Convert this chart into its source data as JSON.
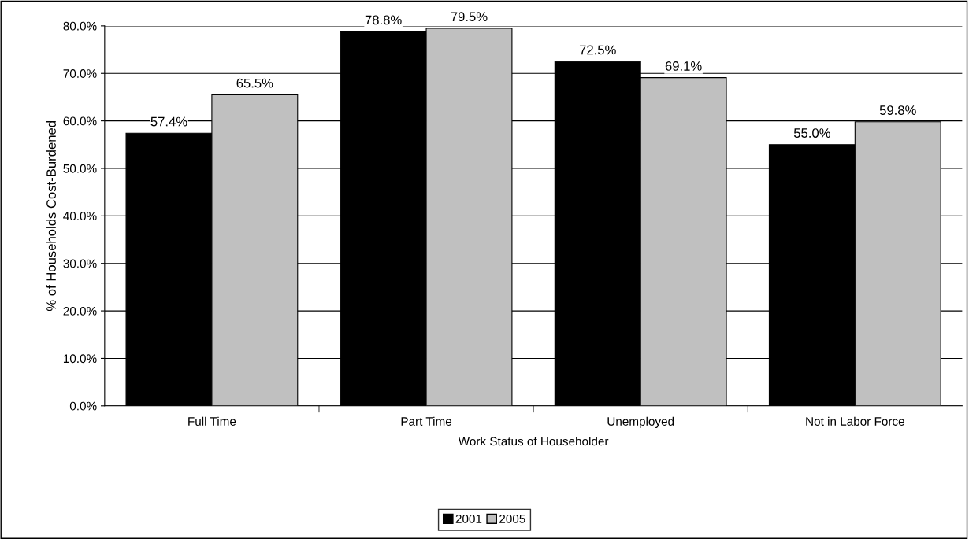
{
  "chart_data": {
    "type": "bar",
    "xlabel": "Work Status of Householder",
    "ylabel": "% of Households Cost-Burdened",
    "categories": [
      "Full Time",
      "Part Time",
      "Unemployed",
      "Not in Labor Force"
    ],
    "series": [
      {
        "name": "2001",
        "color": "#000000",
        "values": [
          57.4,
          78.8,
          72.5,
          55.0
        ],
        "value_labels": [
          "57.4%",
          "78.8%",
          "72.5%",
          "55.0%"
        ]
      },
      {
        "name": "2005",
        "color": "#c0c0c0",
        "values": [
          65.5,
          79.5,
          69.1,
          59.8
        ],
        "value_labels": [
          "65.5%",
          "79.5%",
          "69.1%",
          "59.8%"
        ]
      }
    ],
    "ylim": [
      0,
      80
    ],
    "yticks": [
      {
        "value": 0,
        "label": "0.0%"
      },
      {
        "value": 10,
        "label": "10.0%"
      },
      {
        "value": 20,
        "label": "20.0%"
      },
      {
        "value": 30,
        "label": "30.0%"
      },
      {
        "value": 40,
        "label": "40.0%"
      },
      {
        "value": 50,
        "label": "50.0%"
      },
      {
        "value": 60,
        "label": "60.0%"
      },
      {
        "value": 70,
        "label": "70.0%"
      },
      {
        "value": 80,
        "label": "80.0%"
      }
    ],
    "grid": "y",
    "legend": "bottom"
  }
}
